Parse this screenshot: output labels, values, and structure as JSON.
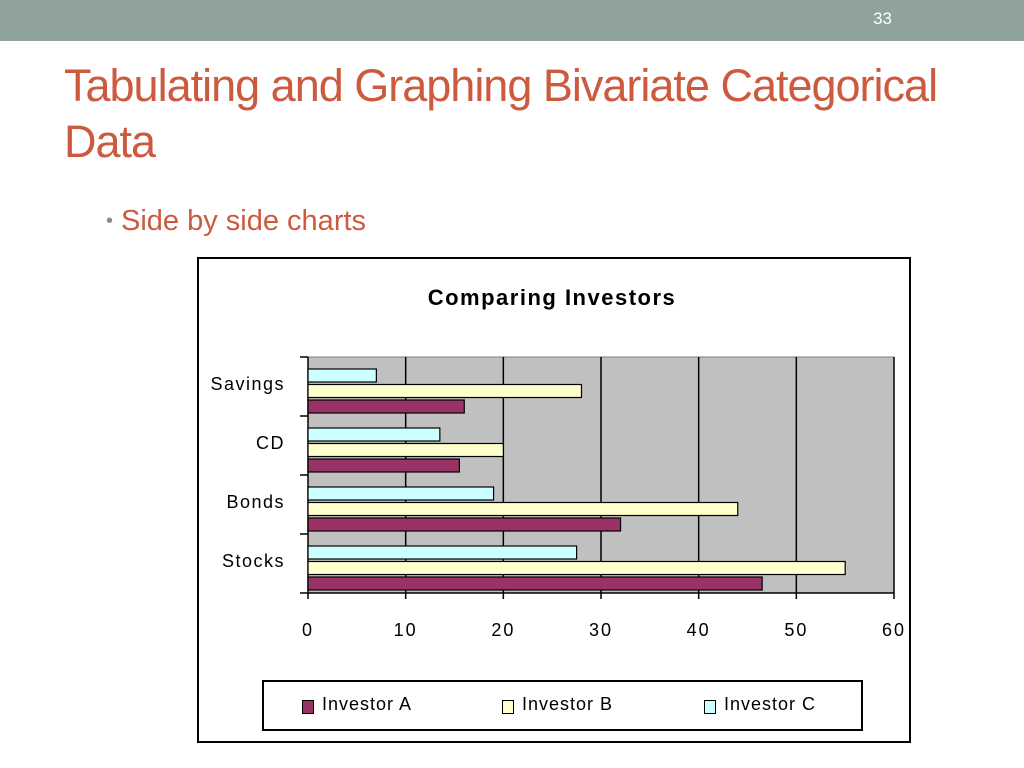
{
  "slide": {
    "number": "33",
    "title": "Tabulating and Graphing Bivariate Categorical Data",
    "bullet": "Side by side charts"
  },
  "colors": {
    "topbar": "#8fa39a",
    "title": "#cc5a3f",
    "plot_background": "#c0c0c0"
  },
  "chart_data": {
    "type": "bar",
    "orientation": "horizontal",
    "title": "Comparing Investors",
    "categories": [
      "Savings",
      "CD",
      "Bonds",
      "Stocks"
    ],
    "series": [
      {
        "name": "Investor A",
        "values": [
          16,
          15.5,
          32,
          46.5
        ],
        "color": "#993366"
      },
      {
        "name": "Investor B",
        "values": [
          28,
          20,
          44,
          55
        ],
        "color": "#ffffcc"
      },
      {
        "name": "Investor C",
        "values": [
          7,
          13.5,
          19,
          27.5
        ],
        "color": "#ccffff"
      }
    ],
    "xlim": [
      0,
      60
    ],
    "x_ticks": [
      "0",
      "10",
      "20",
      "30",
      "40",
      "50",
      "60"
    ],
    "grid": true,
    "legend_position": "bottom"
  }
}
